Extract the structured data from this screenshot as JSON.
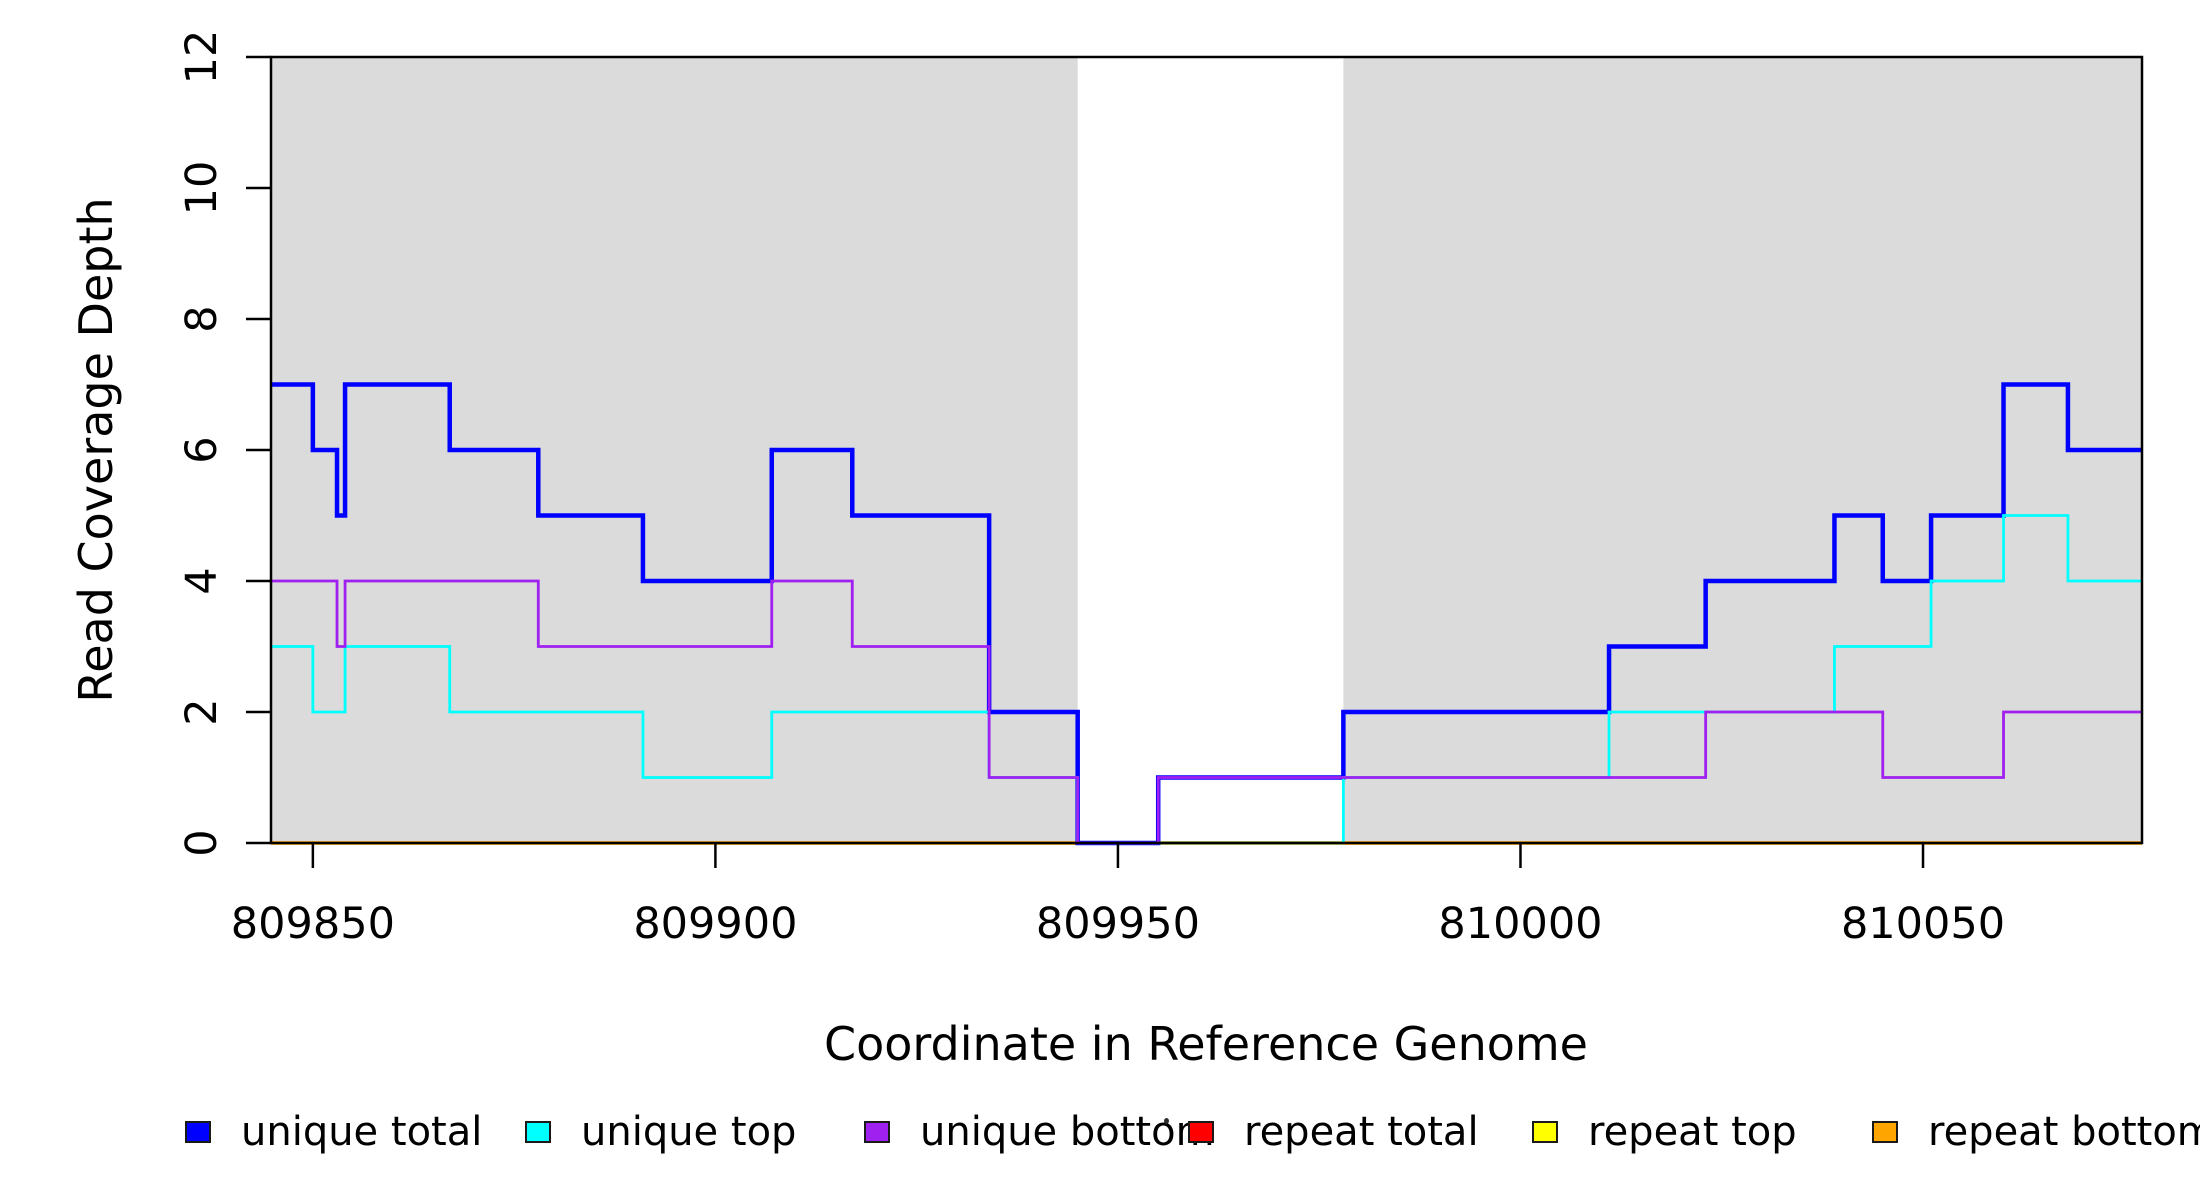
{
  "chart_data": {
    "type": "line",
    "subtype": "step-coverage",
    "title": "",
    "xlabel": "Coordinate in Reference Genome",
    "ylabel": "Read Coverage Depth",
    "xlim": [
      809844.8,
      810077.2
    ],
    "ylim": [
      0,
      12
    ],
    "x_ticks": [
      "809850",
      "809900",
      "809950",
      "810000",
      "810050"
    ],
    "x_tick_values": [
      809850,
      809900,
      809950,
      810000,
      810050
    ],
    "y_ticks": [
      "0",
      "2",
      "4",
      "6",
      "8",
      "10",
      "12"
    ],
    "y_tick_values": [
      0,
      2,
      4,
      6,
      8,
      10,
      12
    ],
    "grid": false,
    "plot_border_color": "#000000",
    "background_bands": {
      "color": "#DBDBDB",
      "comment": "shaded regions of read coverage; white gap = zero-coverage region",
      "regions": [
        [
          809844.8,
          809945
        ],
        [
          809978,
          810077.2
        ]
      ]
    },
    "series": [
      {
        "name": "repeat total",
        "color": "#FF0000",
        "width": 3,
        "points": [
          [
            809844.8,
            0
          ]
        ],
        "x_end": 810077.2
      },
      {
        "name": "repeat top",
        "color": "#FFFF00",
        "width": 3,
        "points": [
          [
            809844.8,
            0
          ]
        ],
        "x_end": 810077.2
      },
      {
        "name": "repeat bottom",
        "color": "#FFA500",
        "width": 3.8,
        "points": [
          [
            809844.8,
            0
          ]
        ],
        "x_end": 810077.2
      },
      {
        "name": "unique total",
        "color": "#0000FF",
        "width": 4.5,
        "points": [
          [
            809844.8,
            7
          ],
          [
            809850,
            6
          ],
          [
            809853,
            5
          ],
          [
            809854,
            7
          ],
          [
            809867,
            6
          ],
          [
            809878,
            5
          ],
          [
            809891,
            4
          ],
          [
            809907,
            6
          ],
          [
            809917,
            5
          ],
          [
            809934,
            2
          ],
          [
            809945,
            0
          ],
          [
            809955,
            1
          ],
          [
            809978,
            2
          ],
          [
            810011,
            3
          ],
          [
            810023,
            4
          ],
          [
            810039,
            5
          ],
          [
            810045,
            4
          ],
          [
            810051,
            5
          ],
          [
            810060,
            7
          ],
          [
            810068,
            6
          ]
        ],
        "x_end": 810077.2
      },
      {
        "name": "unique top",
        "color": "#00FFFF",
        "width": 2.8,
        "points": [
          [
            809844.8,
            3
          ],
          [
            809850,
            2
          ],
          [
            809854,
            3
          ],
          [
            809867,
            2
          ],
          [
            809891,
            1
          ],
          [
            809907,
            2
          ],
          [
            809934,
            1
          ],
          [
            809945,
            0
          ],
          [
            809978,
            1
          ],
          [
            810011,
            2
          ],
          [
            810039,
            3
          ],
          [
            810051,
            4
          ],
          [
            810060,
            5
          ],
          [
            810068,
            4
          ]
        ],
        "x_end": 810077.2
      },
      {
        "name": "unique bottom",
        "color": "#A020F0",
        "width": 2.8,
        "points": [
          [
            809844.8,
            4
          ],
          [
            809853,
            3
          ],
          [
            809854,
            4
          ],
          [
            809878,
            3
          ],
          [
            809907,
            4
          ],
          [
            809917,
            3
          ],
          [
            809934,
            1
          ],
          [
            809945,
            0
          ],
          [
            809955,
            1
          ],
          [
            810023,
            2
          ],
          [
            810045,
            1
          ],
          [
            810060,
            2
          ]
        ],
        "x_end": 810077.2
      }
    ],
    "legend": {
      "position": "bottom",
      "items": [
        {
          "label": "unique total",
          "color": "#0000FF"
        },
        {
          "label": "unique top",
          "color": "#00FFFF"
        },
        {
          "label": "unique bottom",
          "color": "#A020F0"
        },
        {
          "label": "repeat total",
          "color": "#FF0000"
        },
        {
          "label": "repeat top",
          "color": "#FFFF00"
        },
        {
          "label": "repeat bottom",
          "color": "#FFA500"
        }
      ]
    }
  }
}
